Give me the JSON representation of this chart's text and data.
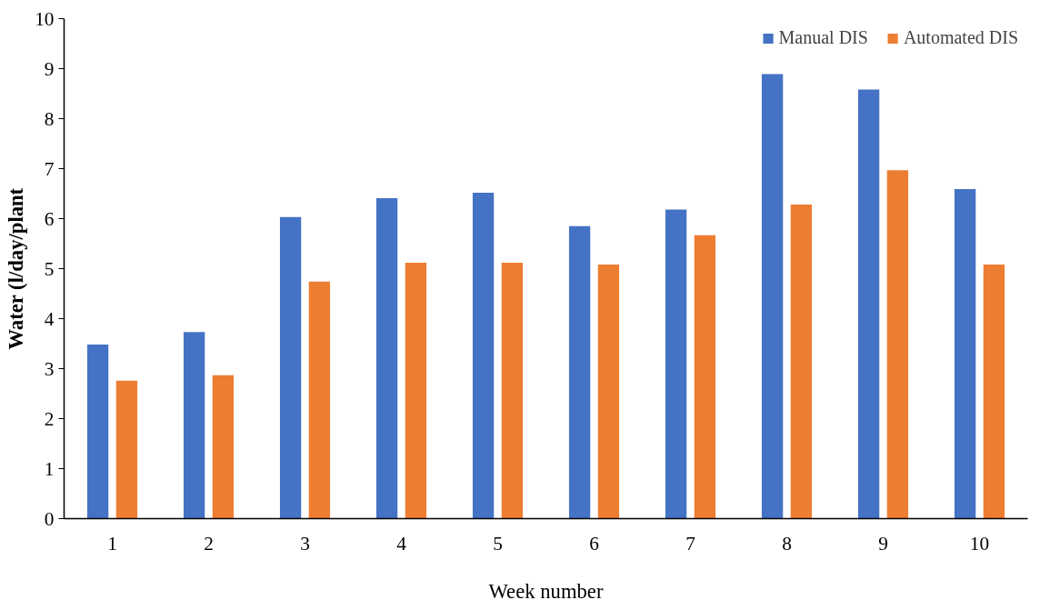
{
  "chart_data": {
    "type": "bar",
    "xlabel": "Week number",
    "ylabel": "Water (l/day/plant",
    "categories": [
      "1",
      "2",
      "3",
      "4",
      "5",
      "6",
      "7",
      "8",
      "9",
      "10"
    ],
    "series": [
      {
        "name": "Manual DIS",
        "color": "#4472c4",
        "values": [
          3.48,
          3.73,
          6.03,
          6.41,
          6.52,
          5.85,
          6.18,
          8.89,
          8.58,
          6.59
        ]
      },
      {
        "name": "Automated DIS",
        "color": "#ed7d31",
        "values": [
          2.76,
          2.87,
          4.74,
          5.12,
          5.12,
          5.08,
          5.67,
          6.28,
          6.97,
          5.08
        ]
      }
    ],
    "ylim": [
      0,
      10
    ],
    "yticks": [
      0,
      1,
      2,
      3,
      4,
      5,
      6,
      7,
      8,
      9,
      10
    ],
    "grid": false,
    "legend": "top right"
  }
}
